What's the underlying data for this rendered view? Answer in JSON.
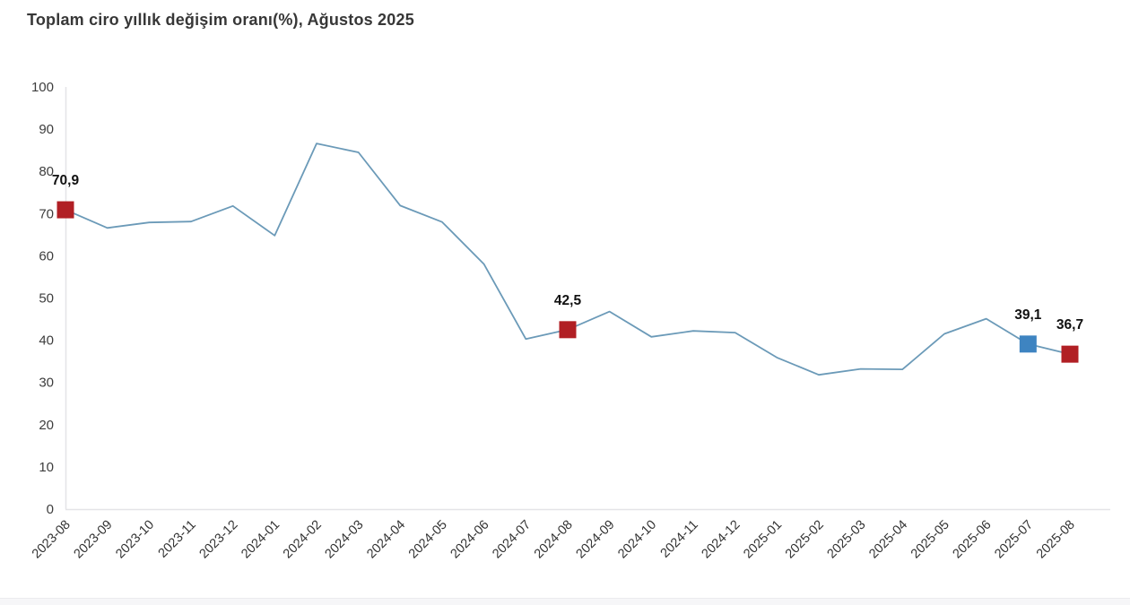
{
  "title": "Toplam ciro yıllık değişim oranı(%), Ağustos 2025",
  "chart_data": {
    "type": "line",
    "title": "Toplam ciro yıllık değişim oranı(%), Ağustos 2025",
    "x": [
      "2023-08",
      "2023-09",
      "2023-10",
      "2023-11",
      "2023-12",
      "2024-01",
      "2024-02",
      "2024-03",
      "2024-04",
      "2024-05",
      "2024-06",
      "2024-07",
      "2024-08",
      "2024-09",
      "2024-10",
      "2024-11",
      "2024-12",
      "2025-01",
      "2025-02",
      "2025-03",
      "2025-04",
      "2025-05",
      "2025-06",
      "2025-07",
      "2025-08"
    ],
    "values": [
      70.9,
      66.6,
      67.9,
      68.1,
      71.8,
      64.8,
      86.6,
      84.5,
      71.9,
      68.0,
      58.0,
      40.3,
      42.5,
      46.8,
      40.8,
      42.2,
      41.8,
      35.9,
      31.8,
      33.2,
      33.1,
      41.5,
      45.1,
      39.1,
      36.7
    ],
    "ylim": [
      0,
      100
    ],
    "yticks": [
      0,
      10,
      20,
      30,
      40,
      50,
      60,
      70,
      80,
      90,
      100
    ],
    "xlabel": "",
    "ylabel": "",
    "grid": false,
    "legend": "none",
    "annotations": [
      {
        "index": 0,
        "label": "70,9",
        "marker_color": "#b11f24"
      },
      {
        "index": 12,
        "label": "42,5",
        "marker_color": "#b11f24"
      },
      {
        "index": 23,
        "label": "39,1",
        "marker_color": "#3e84c1"
      },
      {
        "index": 24,
        "label": "36,7",
        "marker_color": "#b11f24"
      }
    ],
    "line_color": "#6b9ab8",
    "axis_color": "#e4e4e7",
    "tick_label_color": "#3d3d3d",
    "x_label_color": "#333333",
    "annotation_label_color": "#111111"
  }
}
